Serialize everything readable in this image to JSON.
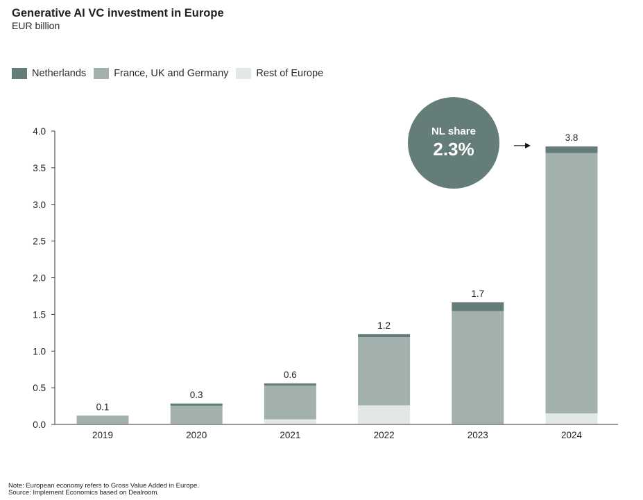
{
  "chart_data": {
    "type": "bar",
    "stacked": true,
    "title": "Generative AI VC investment in Europe",
    "subtitle": "EUR billion",
    "xlabel": "",
    "ylabel": "EUR billion",
    "ylim": [
      0,
      4.0
    ],
    "yticks": [
      "0.0",
      "0.5",
      "1.0",
      "1.5",
      "2.0",
      "2.5",
      "3.0",
      "3.5",
      "4.0"
    ],
    "ytick_values": [
      0,
      0.5,
      1.0,
      1.5,
      2.0,
      2.5,
      3.0,
      3.5,
      4.0
    ],
    "grid": false,
    "legend_position": "top-left",
    "categories": [
      "2019",
      "2020",
      "2021",
      "2022",
      "2023",
      "2024"
    ],
    "series": [
      {
        "name": "Rest of Europe",
        "color": "#e2e8e6",
        "values": [
          0.005,
          0.01,
          0.07,
          0.26,
          0.0,
          0.15
        ]
      },
      {
        "name": "France, UK and Germany",
        "color": "#a3b1ae",
        "values": [
          0.115,
          0.245,
          0.46,
          0.93,
          1.545,
          3.55
        ]
      },
      {
        "name": "Netherlands",
        "color": "#647d78",
        "values": [
          0.0,
          0.03,
          0.03,
          0.04,
          0.12,
          0.09
        ]
      }
    ],
    "totals_labels": [
      "0.1",
      "0.3",
      "0.6",
      "1.2",
      "1.7",
      "3.8"
    ],
    "annotation": {
      "line1": "NL share",
      "line2": "2.3%",
      "target_category": "2024",
      "color": "#647d78"
    }
  },
  "legend": [
    {
      "label": "Netherlands",
      "color": "#647d78"
    },
    {
      "label": "France, UK and Germany",
      "color": "#a3b1ae"
    },
    {
      "label": "Rest of Europe",
      "color": "#e2e8e6"
    }
  ],
  "footer": {
    "note": "Note: European economy refers to Gross Value Added in Europe.",
    "source": "Source: Implement Economics based on Dealroom."
  }
}
